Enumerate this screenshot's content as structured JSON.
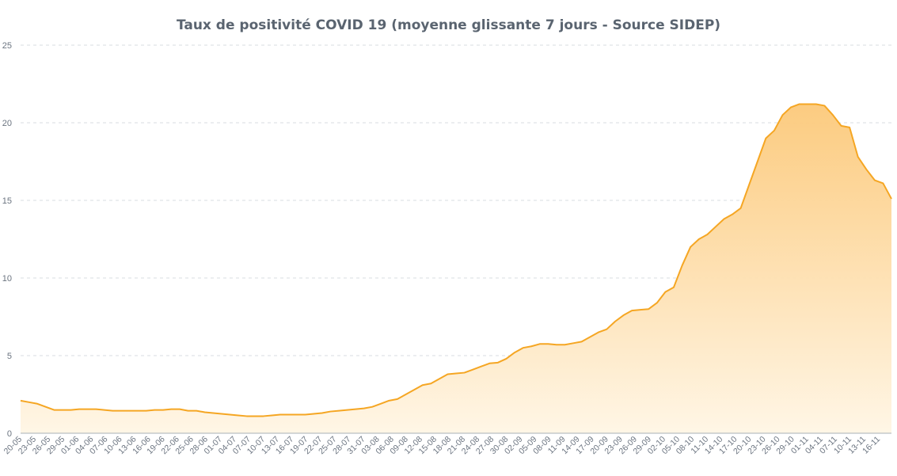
{
  "chart_data": {
    "type": "area",
    "title": "Taux de positivité COVID 19 (moyenne glissante 7 jours - Source SIDEP)",
    "xlabel": "",
    "ylabel": "",
    "ylim": [
      0,
      25
    ],
    "yticks": [
      0,
      5,
      10,
      15,
      20,
      25
    ],
    "grid": true,
    "colors": {
      "line": "#f5a623",
      "fill_top": "#fcc97a",
      "fill_bottom": "#fff6e6"
    },
    "tick_labels": [
      "20-05",
      "23-05",
      "26-05",
      "29-05",
      "01-06",
      "04-06",
      "07-06",
      "10-06",
      "13-06",
      "16-06",
      "19-06",
      "22-06",
      "25-06",
      "28-06",
      "01-07",
      "04-07",
      "07-07",
      "10-07",
      "13-07",
      "16-07",
      "19-07",
      "22-07",
      "25-07",
      "28-07",
      "31-07",
      "03-08",
      "06-08",
      "09-08",
      "12-08",
      "15-08",
      "18-08",
      "21-08",
      "24-08",
      "27-08",
      "30-08",
      "02-09",
      "05-09",
      "08-09",
      "11-09",
      "14-09",
      "17-09",
      "20-09",
      "23-09",
      "26-09",
      "29-09",
      "02-10",
      "05-10",
      "08-10",
      "11-10",
      "14-10",
      "17-10",
      "20-10",
      "23-10",
      "26-10",
      "29-10",
      "01-11",
      "04-11",
      "07-11",
      "10-11",
      "13-11",
      "16-11"
    ],
    "series": [
      {
        "name": "Taux de positivité",
        "values": [
          2.1,
          2.0,
          1.9,
          1.7,
          1.5,
          1.5,
          1.5,
          1.55,
          1.55,
          1.55,
          1.5,
          1.45,
          1.45,
          1.45,
          1.45,
          1.45,
          1.5,
          1.5,
          1.55,
          1.55,
          1.45,
          1.45,
          1.35,
          1.3,
          1.25,
          1.2,
          1.15,
          1.1,
          1.1,
          1.1,
          1.15,
          1.2,
          1.2,
          1.2,
          1.2,
          1.25,
          1.3,
          1.4,
          1.45,
          1.5,
          1.55,
          1.6,
          1.7,
          1.9,
          2.1,
          2.2,
          2.5,
          2.8,
          3.1,
          3.2,
          3.5,
          3.8,
          3.85,
          3.9,
          4.1,
          4.3,
          4.5,
          4.55,
          4.8,
          5.2,
          5.5,
          5.6,
          5.75,
          5.75,
          5.7,
          5.7,
          5.8,
          5.9,
          6.2,
          6.5,
          6.7,
          7.2,
          7.6,
          7.9,
          7.95,
          8.0,
          8.4,
          9.1,
          9.4,
          10.8,
          12.0,
          12.5,
          12.8,
          13.3,
          13.8,
          14.1,
          14.5,
          16.0,
          17.5,
          19.0,
          19.5,
          20.5,
          21.0,
          21.2,
          21.2,
          21.2,
          21.1,
          20.5,
          19.8,
          19.7,
          17.8,
          17.0,
          16.3,
          16.1,
          15.1
        ]
      }
    ]
  }
}
